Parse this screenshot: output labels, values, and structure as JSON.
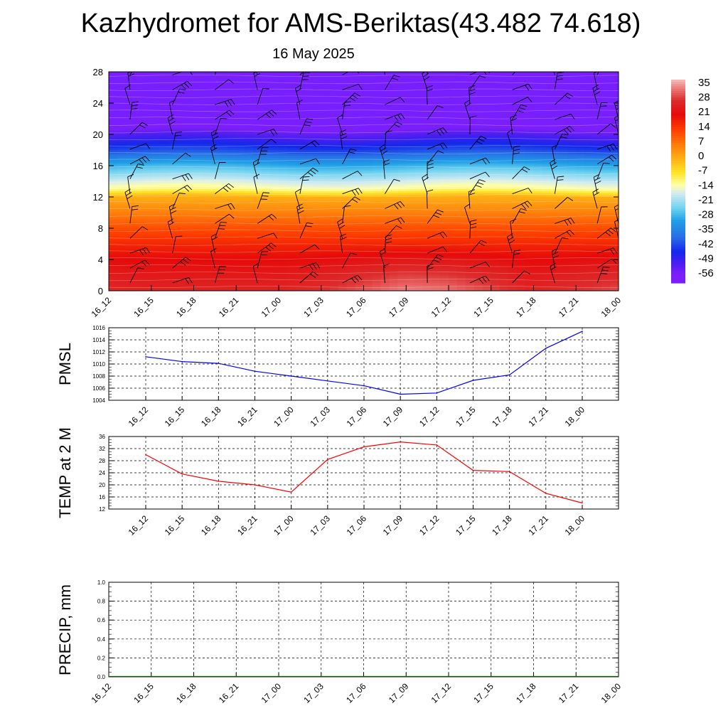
{
  "title": "Kazhydromet for AMS-Beriktas(43.482 74.618)",
  "subtitle": "16 May 2025",
  "chart_data": [
    {
      "type": "heatmap",
      "title": "",
      "xlabel": "",
      "ylabel": "",
      "x_tick_labels": [
        "16_12",
        "16_15",
        "16_18",
        "16_21",
        "17_00",
        "17_03",
        "17_06",
        "17_09",
        "17_12",
        "17_15",
        "17_18",
        "17_21",
        "18_00"
      ],
      "y_ticks": [
        0,
        4,
        8,
        12,
        16,
        20,
        24,
        28
      ],
      "ylim": [
        0,
        28
      ],
      "colorbar": {
        "tick_labels": [
          "35",
          "28",
          "21",
          "14",
          "7",
          "0",
          "-7",
          "-14",
          "-21",
          "-28",
          "-35",
          "-42",
          "-49",
          "-56"
        ],
        "ticks": [
          35,
          28,
          21,
          14,
          7,
          0,
          -7,
          -14,
          -21,
          -28,
          -35,
          -42,
          -49,
          -56
        ],
        "range": [
          -60,
          38
        ]
      },
      "temperature_profile": {
        "levels": [
          0,
          2,
          4,
          6,
          8,
          10,
          12,
          13,
          14,
          16,
          18,
          20,
          21,
          22,
          24,
          28
        ],
        "values": [
          26,
          24,
          21,
          17,
          12,
          6,
          0,
          -12,
          -17,
          -28,
          -42,
          -52,
          -58,
          -62,
          -62,
          -62
        ]
      },
      "surface_warming_by_time": [
        0.5,
        0,
        0,
        0,
        0,
        2,
        5,
        8,
        7,
        4,
        0,
        2,
        4
      ],
      "wind_barbs": true
    },
    {
      "type": "line",
      "ylabel": "PMSL",
      "x_tick_labels": [
        "16_12",
        "16_15",
        "16_18",
        "16_21",
        "17_00",
        "17_03",
        "17_06",
        "17_09",
        "17_12",
        "17_15",
        "17_18",
        "17_21",
        "18_00"
      ],
      "y_tick_labels": [
        "1016",
        "1014",
        "1012",
        "1010",
        "1008",
        "1006",
        "1004"
      ],
      "ylim": [
        1004,
        1016
      ],
      "values": [
        1011.2,
        1010.4,
        1010.1,
        1008.8,
        1008.0,
        1007.2,
        1006.4,
        1005.0,
        1005.2,
        1007.3,
        1008.2,
        1012.6,
        1015.4
      ],
      "color": "#0000ff",
      "grid": true
    },
    {
      "type": "line",
      "ylabel": "TEMP at 2 M",
      "x_tick_labels": [
        "16_12",
        "16_15",
        "16_18",
        "16_21",
        "17_00",
        "17_03",
        "17_06",
        "17_09",
        "17_12",
        "17_15",
        "17_18",
        "17_21",
        "18_00"
      ],
      "y_tick_labels": [
        "36",
        "32",
        "28",
        "24",
        "20",
        "16",
        "12"
      ],
      "ylim": [
        12,
        36
      ],
      "values": [
        30.0,
        23.6,
        21.2,
        20.0,
        17.6,
        28.4,
        32.6,
        34.2,
        33.2,
        24.8,
        24.4,
        17.2,
        14.0
      ],
      "color": "#ff0000",
      "grid": true
    },
    {
      "type": "bar",
      "ylabel": "PRECIP, mm",
      "x_tick_labels": [
        "16_12",
        "16_15",
        "16_18",
        "16_21",
        "17_00",
        "17_03",
        "17_06",
        "17_09",
        "17_12",
        "17_15",
        "17_18",
        "17_21",
        "18_00"
      ],
      "y_tick_labels": [
        "1.0",
        "0.8",
        "0.6",
        "0.4",
        "0.2",
        "0.0"
      ],
      "ylim": [
        0,
        1
      ],
      "values": [
        0,
        0,
        0,
        0,
        0,
        0,
        0,
        0,
        0,
        0,
        0,
        0,
        0
      ],
      "color": "#006400",
      "grid": true
    }
  ]
}
